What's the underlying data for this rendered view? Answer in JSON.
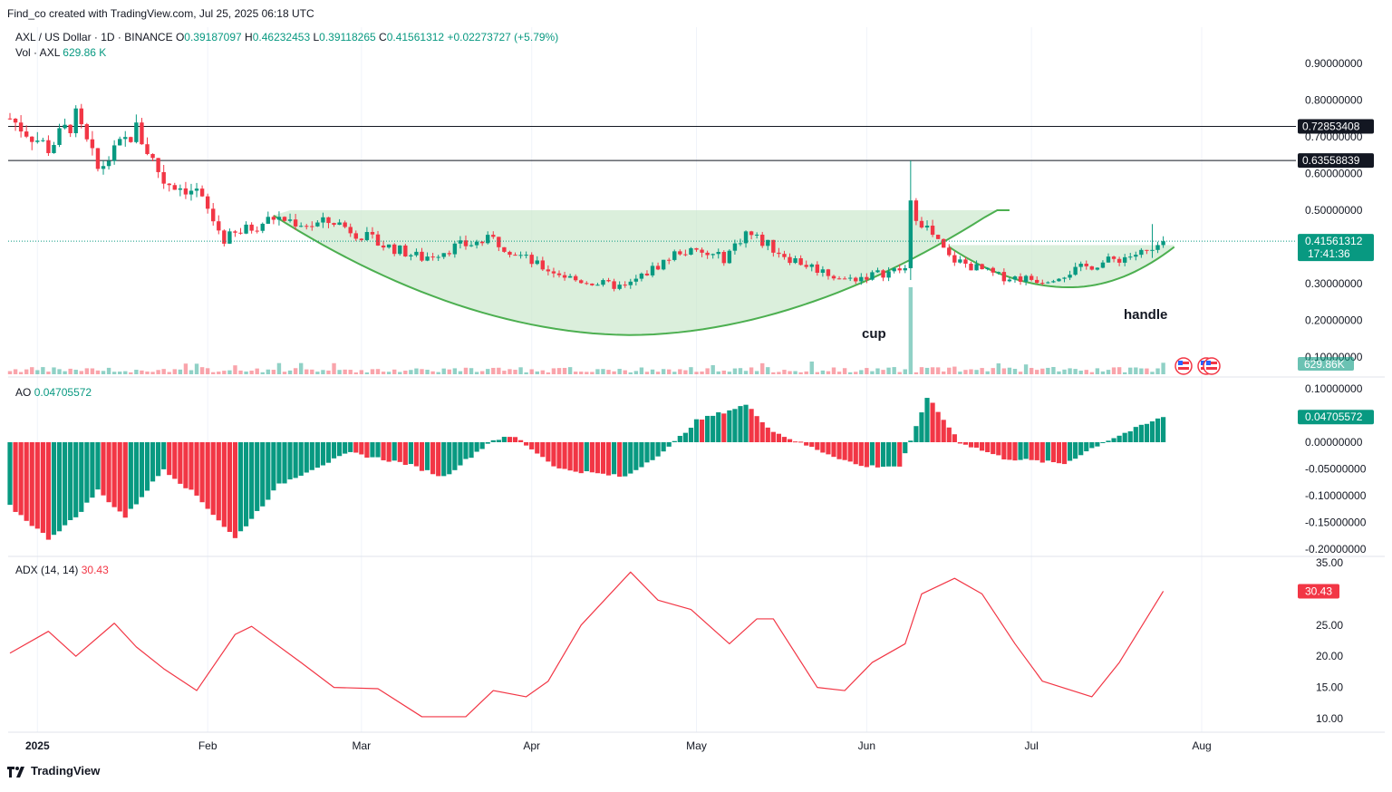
{
  "header": {
    "credit": "Find_co created with TradingView.com, Jul 25, 2025 06:18 UTC",
    "symbol": "AXL / US Dollar · 1D · BINANCE",
    "o_label": "O",
    "o": "0.39187097",
    "h_label": "H",
    "h": "0.46232453",
    "l_label": "L",
    "l": "0.39118265",
    "c_label": "C",
    "c": "0.41561312",
    "change": "+0.02273727 (+5.79%)",
    "vol_label": "Vol · AXL",
    "vol": "629.86 K"
  },
  "price_axis": {
    "ticks": [
      "0.90000000",
      "0.80000000",
      "0.70000000",
      "0.60000000",
      "0.50000000",
      "0.30000000",
      "0.20000000",
      "0.10000000"
    ],
    "levels": [
      {
        "label": "0.72853408",
        "value": 0.7285
      },
      {
        "label": "0.63558839",
        "value": 0.6356
      }
    ],
    "last_price": "0.41561312",
    "countdown": "17:41:36",
    "vol_badge": "629.86K"
  },
  "annotations": {
    "cup": "cup",
    "handle": "handle"
  },
  "ao": {
    "label": "AO",
    "value": "0.04705572",
    "ticks": [
      "0.10000000",
      "0.00000000",
      "-0.05000000",
      "-0.10000000",
      "-0.15000000",
      "-0.20000000"
    ]
  },
  "adx": {
    "label": "ADX (14, 14)",
    "value": "30.43",
    "ticks": [
      "35.00",
      "25.00",
      "20.00",
      "15.00",
      "10.00"
    ]
  },
  "time_axis": [
    "2025",
    "Feb",
    "Mar",
    "Apr",
    "May",
    "Jun",
    "Jul",
    "Aug"
  ],
  "footer": {
    "brand": "TradingView"
  },
  "colors": {
    "up": "#089981",
    "down": "#f23645",
    "fill": "#c8e6c9",
    "curve": "#4caf50",
    "adx": "#f23645"
  },
  "chart_data": [
    {
      "type": "candlestick",
      "title": "AXL / US Dollar · 1D · BINANCE",
      "x_start": "2024-12-27",
      "x_end": "2025-07-25",
      "ylim": [
        0.07,
        0.97
      ],
      "close_anchors": [
        [
          "2024-12-27",
          0.75
        ],
        [
          "2025-01-03",
          0.67
        ],
        [
          "2025-01-08",
          0.75
        ],
        [
          "2025-01-12",
          0.61
        ],
        [
          "2025-01-19",
          0.72
        ],
        [
          "2025-01-24",
          0.58
        ],
        [
          "2025-01-30",
          0.55
        ],
        [
          "2025-02-04",
          0.42
        ],
        [
          "2025-02-13",
          0.48
        ],
        [
          "2025-02-20",
          0.46
        ],
        [
          "2025-02-24",
          0.47
        ],
        [
          "2025-03-04",
          0.41
        ],
        [
          "2025-03-12",
          0.37
        ],
        [
          "2025-03-18",
          0.4
        ],
        [
          "2025-03-25",
          0.42
        ],
        [
          "2025-04-02",
          0.35
        ],
        [
          "2025-04-09",
          0.31
        ],
        [
          "2025-04-18",
          0.29
        ],
        [
          "2025-04-28",
          0.39
        ],
        [
          "2025-05-06",
          0.37
        ],
        [
          "2025-05-10",
          0.44
        ],
        [
          "2025-05-18",
          0.37
        ],
        [
          "2025-05-28",
          0.31
        ],
        [
          "2025-06-08",
          0.34
        ],
        [
          "2025-06-09",
          0.51
        ],
        [
          "2025-06-16",
          0.37
        ],
        [
          "2025-06-25",
          0.32
        ],
        [
          "2025-07-03",
          0.31
        ],
        [
          "2025-07-12",
          0.35
        ],
        [
          "2025-07-20",
          0.38
        ],
        [
          "2025-07-24",
          0.39
        ],
        [
          "2025-07-25",
          0.4156
        ]
      ],
      "spikes": [
        [
          "2025-06-09",
          0.6356,
          0.31
        ],
        [
          "2025-07-23",
          0.4623,
          0.37
        ]
      ],
      "volume_spikes": [
        [
          "2025-06-09",
          "large"
        ]
      ],
      "last_volume": "629.86K"
    },
    {
      "type": "bar",
      "title": "AO",
      "ylim": [
        -0.21,
        0.105
      ],
      "anchors": [
        [
          "2024-12-27",
          -0.12
        ],
        [
          "2025-01-03",
          -0.18
        ],
        [
          "2025-01-08",
          -0.14
        ],
        [
          "2025-01-12",
          -0.09
        ],
        [
          "2025-01-17",
          -0.14
        ],
        [
          "2025-01-24",
          -0.05
        ],
        [
          "2025-01-30",
          -0.1
        ],
        [
          "2025-02-06",
          -0.18
        ],
        [
          "2025-02-14",
          -0.08
        ],
        [
          "2025-02-20",
          -0.05
        ],
        [
          "2025-02-27",
          -0.02
        ],
        [
          "2025-03-09",
          -0.04
        ],
        [
          "2025-03-16",
          -0.065
        ],
        [
          "2025-03-25",
          0.005
        ],
        [
          "2025-03-29",
          0.01
        ],
        [
          "2025-04-06",
          -0.05
        ],
        [
          "2025-04-18",
          -0.065
        ],
        [
          "2025-04-26",
          -0.01
        ],
        [
          "2025-05-01",
          0.04
        ],
        [
          "2025-05-10",
          0.07
        ],
        [
          "2025-05-15",
          0.02
        ],
        [
          "2025-05-22",
          -0.01
        ],
        [
          "2025-05-31",
          -0.045
        ],
        [
          "2025-06-07",
          -0.045
        ],
        [
          "2025-06-09",
          0.0
        ],
        [
          "2025-06-12",
          0.085
        ],
        [
          "2025-06-18",
          0.0
        ],
        [
          "2025-06-26",
          -0.03
        ],
        [
          "2025-07-07",
          -0.04
        ],
        [
          "2025-07-14",
          0.0
        ],
        [
          "2025-07-25",
          0.047
        ]
      ],
      "last": 0.04705572
    },
    {
      "type": "line",
      "title": "ADX (14, 14)",
      "ylim": [
        8.5,
        35.5
      ],
      "points": [
        [
          "2024-12-27",
          20.5
        ],
        [
          "2025-01-03",
          24
        ],
        [
          "2025-01-08",
          20
        ],
        [
          "2025-01-15",
          25.3
        ],
        [
          "2025-01-19",
          21.5
        ],
        [
          "2025-01-24",
          18
        ],
        [
          "2025-01-30",
          14.5
        ],
        [
          "2025-02-06",
          23.5
        ],
        [
          "2025-02-09",
          24.8
        ],
        [
          "2025-02-18",
          19
        ],
        [
          "2025-02-24",
          15
        ],
        [
          "2025-03-04",
          14.8
        ],
        [
          "2025-03-12",
          10.3
        ],
        [
          "2025-03-20",
          10.3
        ],
        [
          "2025-03-25",
          14.5
        ],
        [
          "2025-03-31",
          13.5
        ],
        [
          "2025-04-04",
          16
        ],
        [
          "2025-04-10",
          25
        ],
        [
          "2025-04-19",
          33.5
        ],
        [
          "2025-04-24",
          29
        ],
        [
          "2025-04-30",
          27.5
        ],
        [
          "2025-05-07",
          22
        ],
        [
          "2025-05-12",
          26
        ],
        [
          "2025-05-15",
          26
        ],
        [
          "2025-05-23",
          15
        ],
        [
          "2025-05-28",
          14.5
        ],
        [
          "2025-06-02",
          19
        ],
        [
          "2025-06-08",
          22
        ],
        [
          "2025-06-11",
          30
        ],
        [
          "2025-06-17",
          32.5
        ],
        [
          "2025-06-22",
          30
        ],
        [
          "2025-06-28",
          22
        ],
        [
          "2025-07-03",
          16
        ],
        [
          "2025-07-12",
          13.5
        ],
        [
          "2025-07-17",
          19
        ],
        [
          "2025-07-24",
          29
        ],
        [
          "2025-07-25",
          30.43
        ]
      ]
    }
  ]
}
